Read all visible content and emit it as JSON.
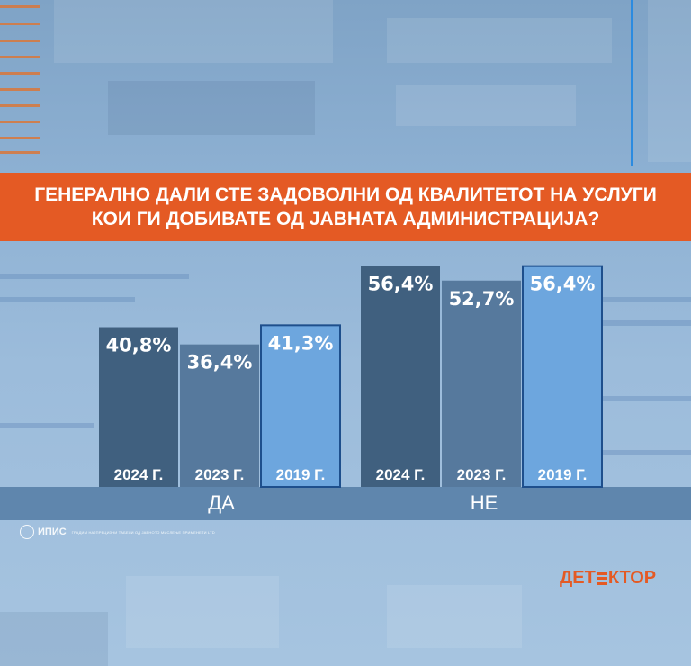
{
  "question": "ГЕНЕРАЛНО ДАЛИ СТЕ ЗАДОВОЛНИ ОД КВАЛИТЕТОТ НА УСЛУГИ КОИ ГИ ДОБИВАТЕ ОД ЈАВНАТА АДМИНИСТРАЦИЈА?",
  "source_logo": {
    "name": "ИПИС",
    "tagline": "ГРАДИМ НАЈПРЕЦИЗНИ ТАБЕЛИ ОД ЈАВНОТО МИСЛЕЊЕ ПРИМЕНЕТИ LTD"
  },
  "brand_logo": {
    "before": "ДЕТ",
    "after": "КТОР"
  },
  "colors": {
    "banner": "#e45a24",
    "bar_2024": "#40607f",
    "bar_2023": "#56799d",
    "bar_2019": "#6da6de",
    "bar_2019_border": "#1e4f8c",
    "brand": "#e45a24"
  },
  "chart_data": {
    "type": "bar",
    "title": "ГЕНЕРАЛНО ДАЛИ СТЕ ЗАДОВОЛНИ ОД КВАЛИТЕТОТ НА УСЛУГИ КОИ ГИ ДОБИВАТЕ ОД ЈАВНАТА АДМИНИСТРАЦИЈА?",
    "categories": [
      "ДА",
      "НЕ"
    ],
    "series": [
      {
        "name": "2024 Г.",
        "values": [
          40.8,
          56.4
        ],
        "labels": [
          "40,8%",
          "56,4%"
        ]
      },
      {
        "name": "2023 Г.",
        "values": [
          36.4,
          52.7
        ],
        "labels": [
          "36,4%",
          "52,7%"
        ]
      },
      {
        "name": "2019 Г.",
        "values": [
          41.3,
          56.4
        ],
        "labels": [
          "41,3%",
          "56,4%"
        ]
      }
    ],
    "ylim": [
      0,
      100
    ],
    "grid": false
  }
}
